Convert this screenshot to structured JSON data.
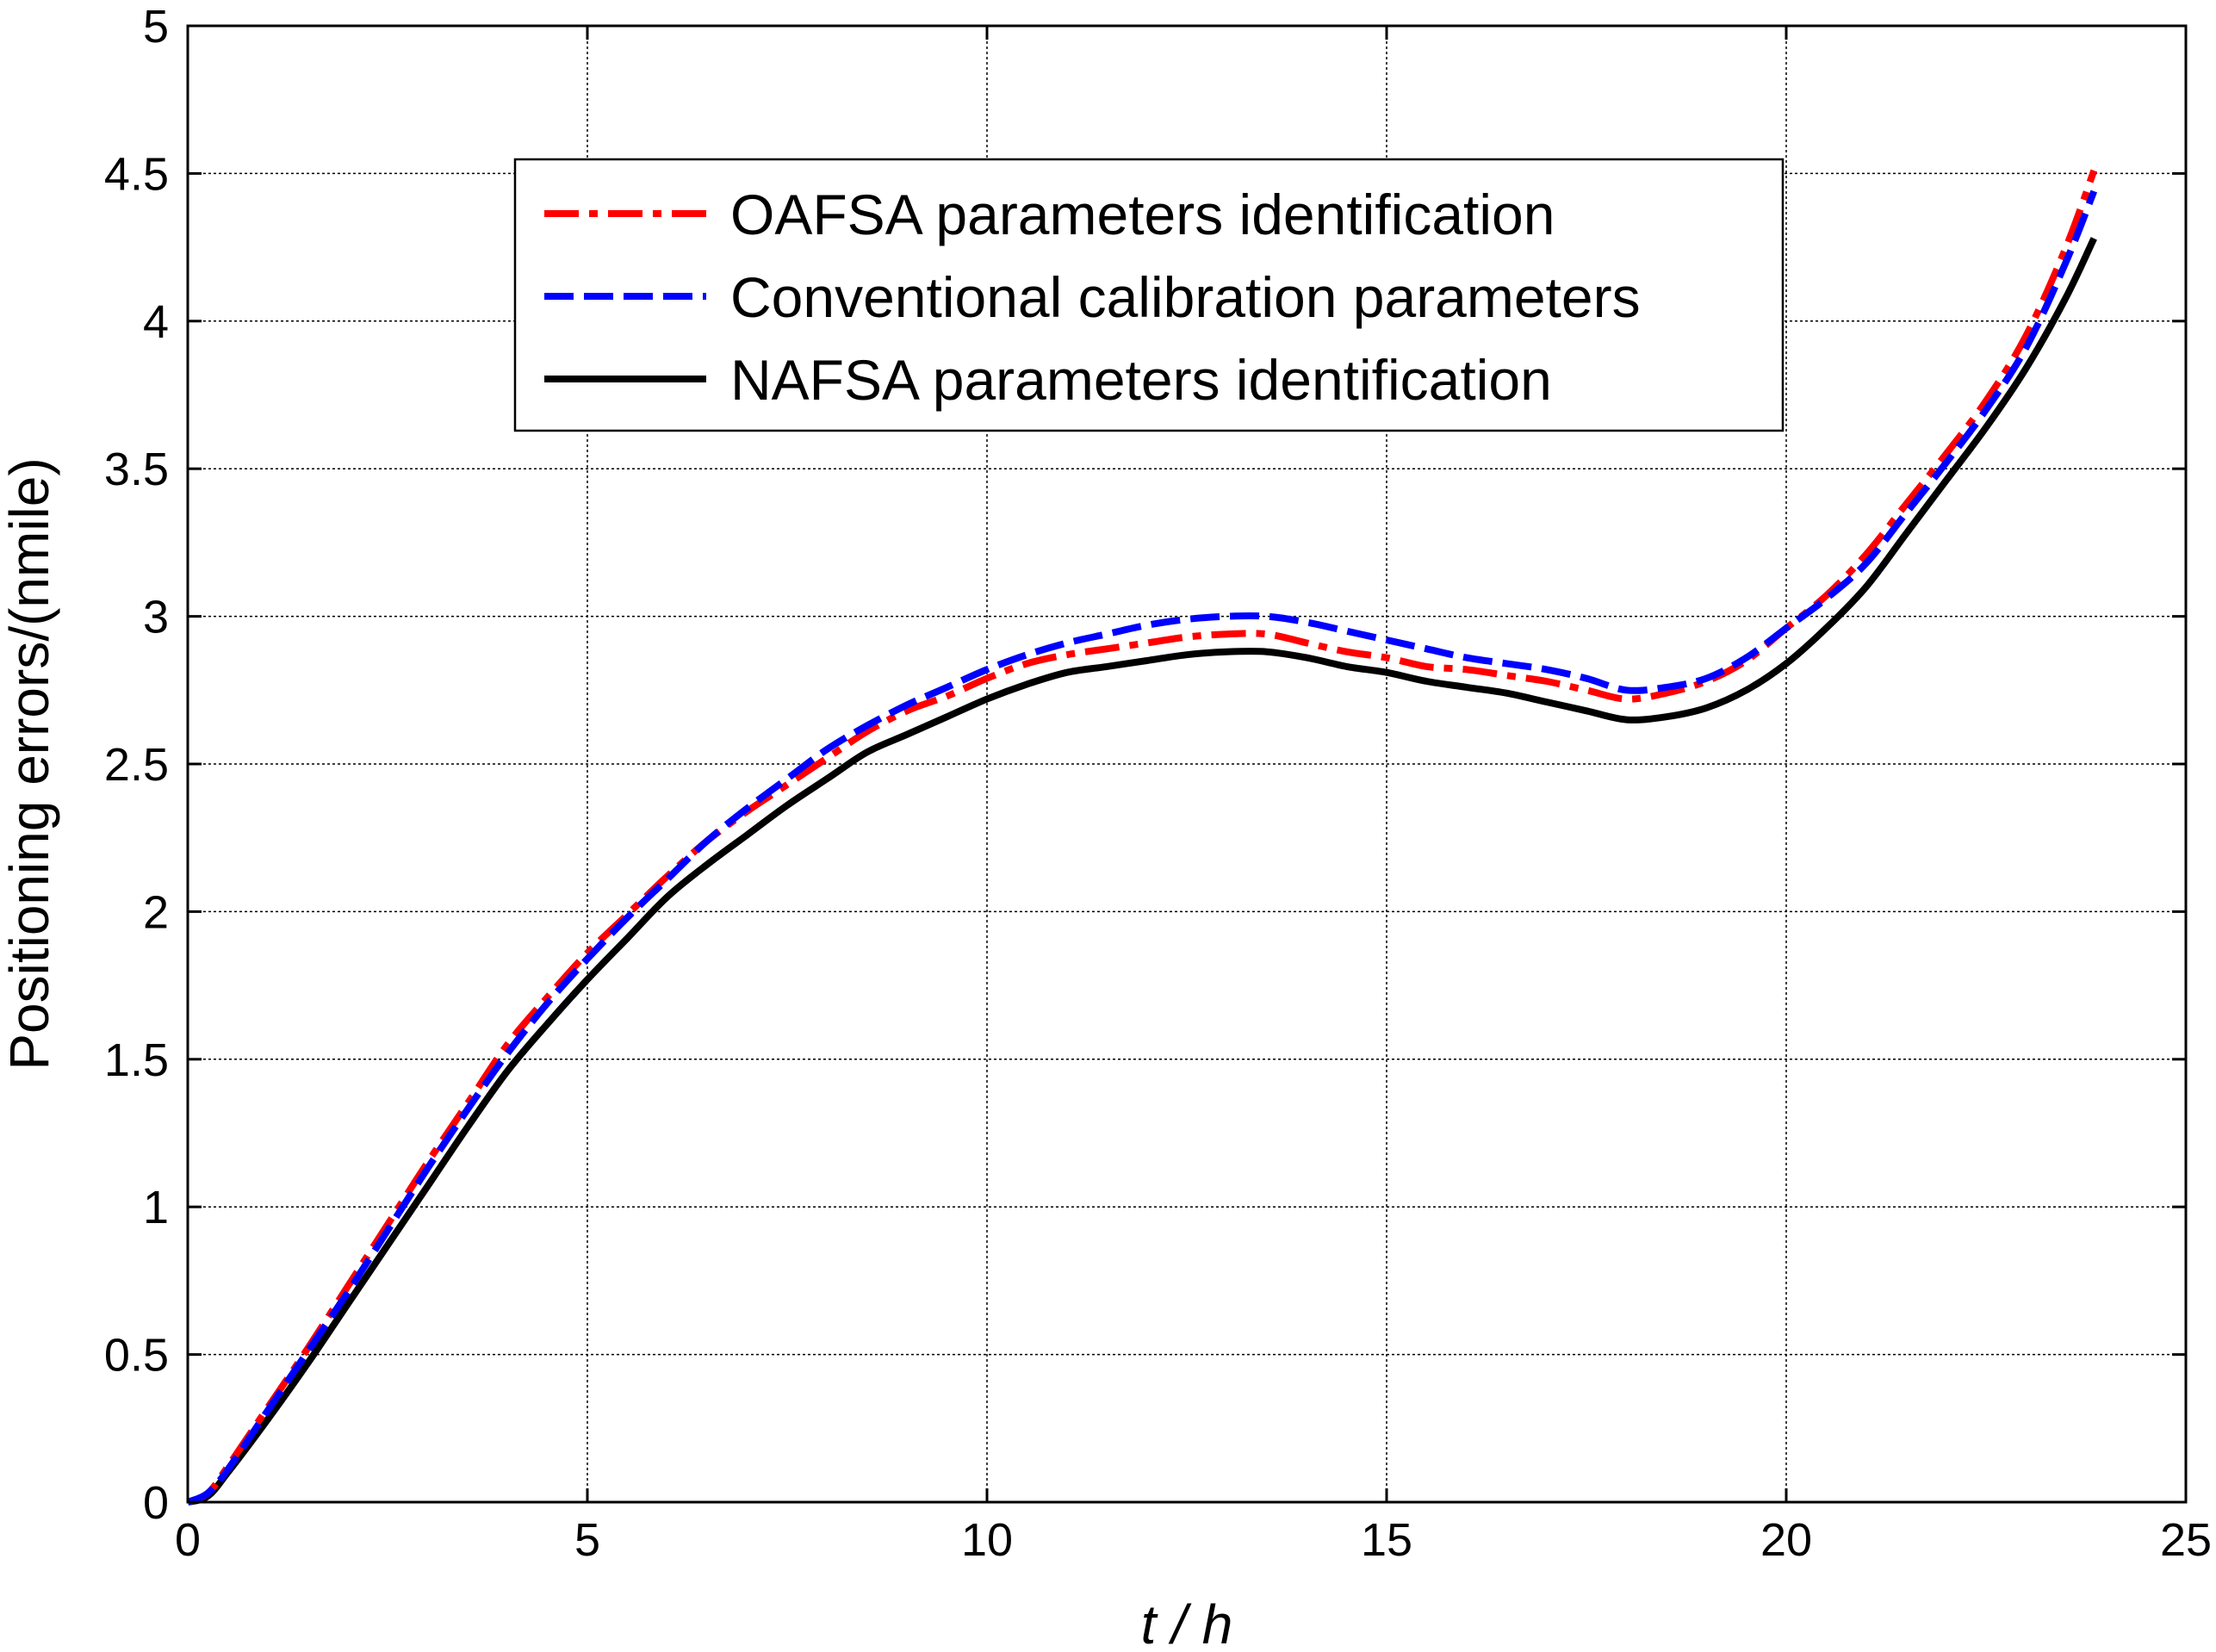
{
  "chart_data": {
    "type": "line",
    "title": "",
    "xlabel": "t / h",
    "ylabel": "Positioning errors/(nmile)",
    "xlim": [
      0,
      25
    ],
    "ylim": [
      0,
      5
    ],
    "xticks": [
      "0",
      "5",
      "10",
      "15",
      "20",
      "25"
    ],
    "yticks": [
      "0",
      "0.5",
      "1",
      "1.5",
      "2",
      "2.5",
      "3",
      "3.5",
      "4",
      "4.5",
      "5"
    ],
    "grid": true,
    "legend_position": "top-center",
    "series": [
      {
        "name": "OAFSA parameters identification",
        "color": "#ff0000",
        "style": "dash-dot",
        "x": [
          0,
          0.25,
          0.5,
          1,
          1.5,
          2,
          2.5,
          3,
          3.5,
          4,
          4.5,
          5,
          5.5,
          6,
          6.5,
          7,
          7.5,
          8,
          8.5,
          9,
          9.5,
          10,
          10.5,
          11,
          11.5,
          12,
          12.5,
          13,
          13.5,
          14,
          14.5,
          15,
          15.5,
          16,
          16.5,
          17,
          17.5,
          18,
          18.5,
          19,
          19.5,
          20,
          20.5,
          21,
          21.5,
          22,
          22.5,
          23,
          23.5,
          23.85
        ],
        "values": [
          0,
          0.03,
          0.12,
          0.32,
          0.52,
          0.73,
          0.94,
          1.15,
          1.35,
          1.55,
          1.71,
          1.86,
          1.99,
          2.12,
          2.24,
          2.34,
          2.43,
          2.52,
          2.61,
          2.68,
          2.73,
          2.79,
          2.84,
          2.87,
          2.89,
          2.91,
          2.93,
          2.94,
          2.94,
          2.91,
          2.88,
          2.86,
          2.83,
          2.82,
          2.8,
          2.78,
          2.75,
          2.72,
          2.74,
          2.78,
          2.85,
          2.96,
          3.07,
          3.21,
          3.38,
          3.55,
          3.73,
          3.95,
          4.25,
          4.51
        ]
      },
      {
        "name": "Conventional calibration parameters",
        "color": "#0000ff",
        "style": "dashed",
        "x": [
          0,
          0.25,
          0.5,
          1,
          1.5,
          2,
          2.5,
          3,
          3.5,
          4,
          4.5,
          5,
          5.5,
          6,
          6.5,
          7,
          7.5,
          8,
          8.5,
          9,
          9.5,
          10,
          10.5,
          11,
          11.5,
          12,
          12.5,
          13,
          13.5,
          14,
          14.5,
          15,
          15.5,
          16,
          16.5,
          17,
          17.5,
          18,
          18.5,
          19,
          19.5,
          20,
          20.5,
          21,
          21.5,
          22,
          22.5,
          23,
          23.5,
          23.85
        ],
        "values": [
          0,
          0.03,
          0.11,
          0.31,
          0.51,
          0.71,
          0.92,
          1.13,
          1.33,
          1.52,
          1.69,
          1.84,
          1.98,
          2.11,
          2.24,
          2.35,
          2.45,
          2.55,
          2.63,
          2.7,
          2.76,
          2.82,
          2.87,
          2.91,
          2.94,
          2.97,
          2.99,
          3.0,
          3.0,
          2.98,
          2.95,
          2.92,
          2.89,
          2.86,
          2.84,
          2.82,
          2.79,
          2.75,
          2.76,
          2.79,
          2.86,
          2.96,
          3.06,
          3.18,
          3.35,
          3.52,
          3.7,
          3.91,
          4.2,
          4.44
        ]
      },
      {
        "name": "NAFSA parameters identification",
        "color": "#000000",
        "style": "solid",
        "x": [
          0,
          0.25,
          0.5,
          1,
          1.5,
          2,
          2.5,
          3,
          3.5,
          4,
          4.5,
          5,
          5.5,
          6,
          6.5,
          7,
          7.5,
          8,
          8.5,
          9,
          9.5,
          10,
          10.5,
          11,
          11.5,
          12,
          12.5,
          13,
          13.5,
          14,
          14.5,
          15,
          15.5,
          16,
          16.5,
          17,
          17.5,
          18,
          18.5,
          19,
          19.5,
          20,
          20.5,
          21,
          21.5,
          22,
          22.5,
          23,
          23.5,
          23.85
        ],
        "values": [
          0,
          0.02,
          0.1,
          0.28,
          0.47,
          0.67,
          0.87,
          1.07,
          1.27,
          1.46,
          1.62,
          1.77,
          1.91,
          2.05,
          2.16,
          2.26,
          2.36,
          2.45,
          2.54,
          2.6,
          2.66,
          2.72,
          2.77,
          2.81,
          2.83,
          2.85,
          2.87,
          2.88,
          2.88,
          2.86,
          2.83,
          2.81,
          2.78,
          2.76,
          2.74,
          2.71,
          2.68,
          2.65,
          2.66,
          2.69,
          2.75,
          2.84,
          2.96,
          3.1,
          3.28,
          3.46,
          3.64,
          3.84,
          4.08,
          4.28
        ]
      }
    ]
  }
}
